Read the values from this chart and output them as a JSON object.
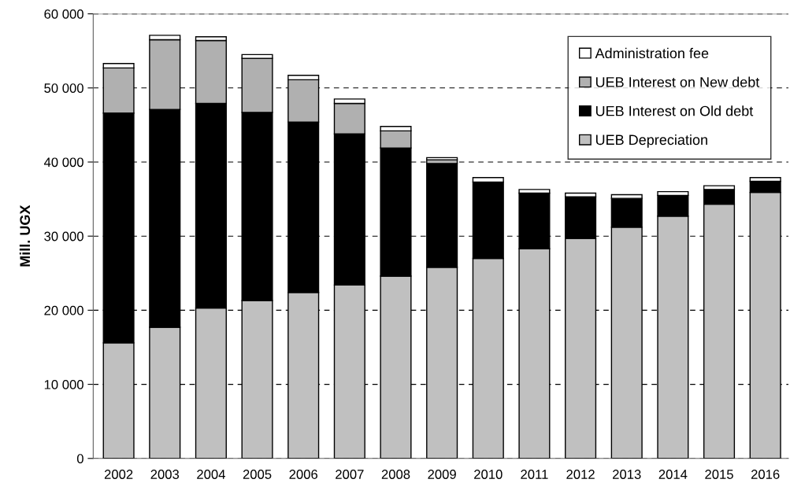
{
  "chart_data": {
    "type": "bar",
    "stacked": true,
    "ylabel": "Mill. UGX",
    "categories": [
      "2002",
      "2003",
      "2004",
      "2005",
      "2006",
      "2007",
      "2008",
      "2009",
      "2010",
      "2011",
      "2012",
      "2013",
      "2014",
      "2015",
      "2016"
    ],
    "series": [
      {
        "name": "UEB Depreciation",
        "color": "#c0c0c0",
        "values": [
          15600,
          17700,
          20300,
          21300,
          22400,
          23400,
          24600,
          25800,
          27000,
          28300,
          29700,
          31200,
          32700,
          34300,
          35900
        ]
      },
      {
        "name": "UEB Interest on Old debt",
        "color": "#000000",
        "values": [
          31000,
          29400,
          27600,
          25400,
          23000,
          20400,
          17300,
          14000,
          10300,
          7500,
          5600,
          3900,
          2800,
          2000,
          1500
        ]
      },
      {
        "name": "UEB Interest on New debt",
        "color": "#b0b0b0",
        "values": [
          6100,
          9400,
          8500,
          7300,
          5700,
          4100,
          2300,
          500,
          0,
          0,
          0,
          0,
          0,
          0,
          0
        ]
      },
      {
        "name": "Administration fee",
        "color": "#ffffff",
        "values": [
          600,
          600,
          500,
          500,
          600,
          600,
          600,
          300,
          600,
          500,
          500,
          500,
          500,
          500,
          500
        ]
      }
    ],
    "ylim": [
      0,
      60000
    ],
    "yticks": [
      0,
      {
        "value": 10000,
        "label": "10 000"
      },
      {
        "value": 20000,
        "label": "20 000"
      },
      {
        "value": 30000,
        "label": "30 000"
      },
      {
        "value": 40000,
        "label": "40 000"
      },
      {
        "value": 50000,
        "label": "50 000"
      },
      {
        "value": 60000,
        "label": "60 000"
      }
    ],
    "grid": "y",
    "legend": "top right"
  }
}
